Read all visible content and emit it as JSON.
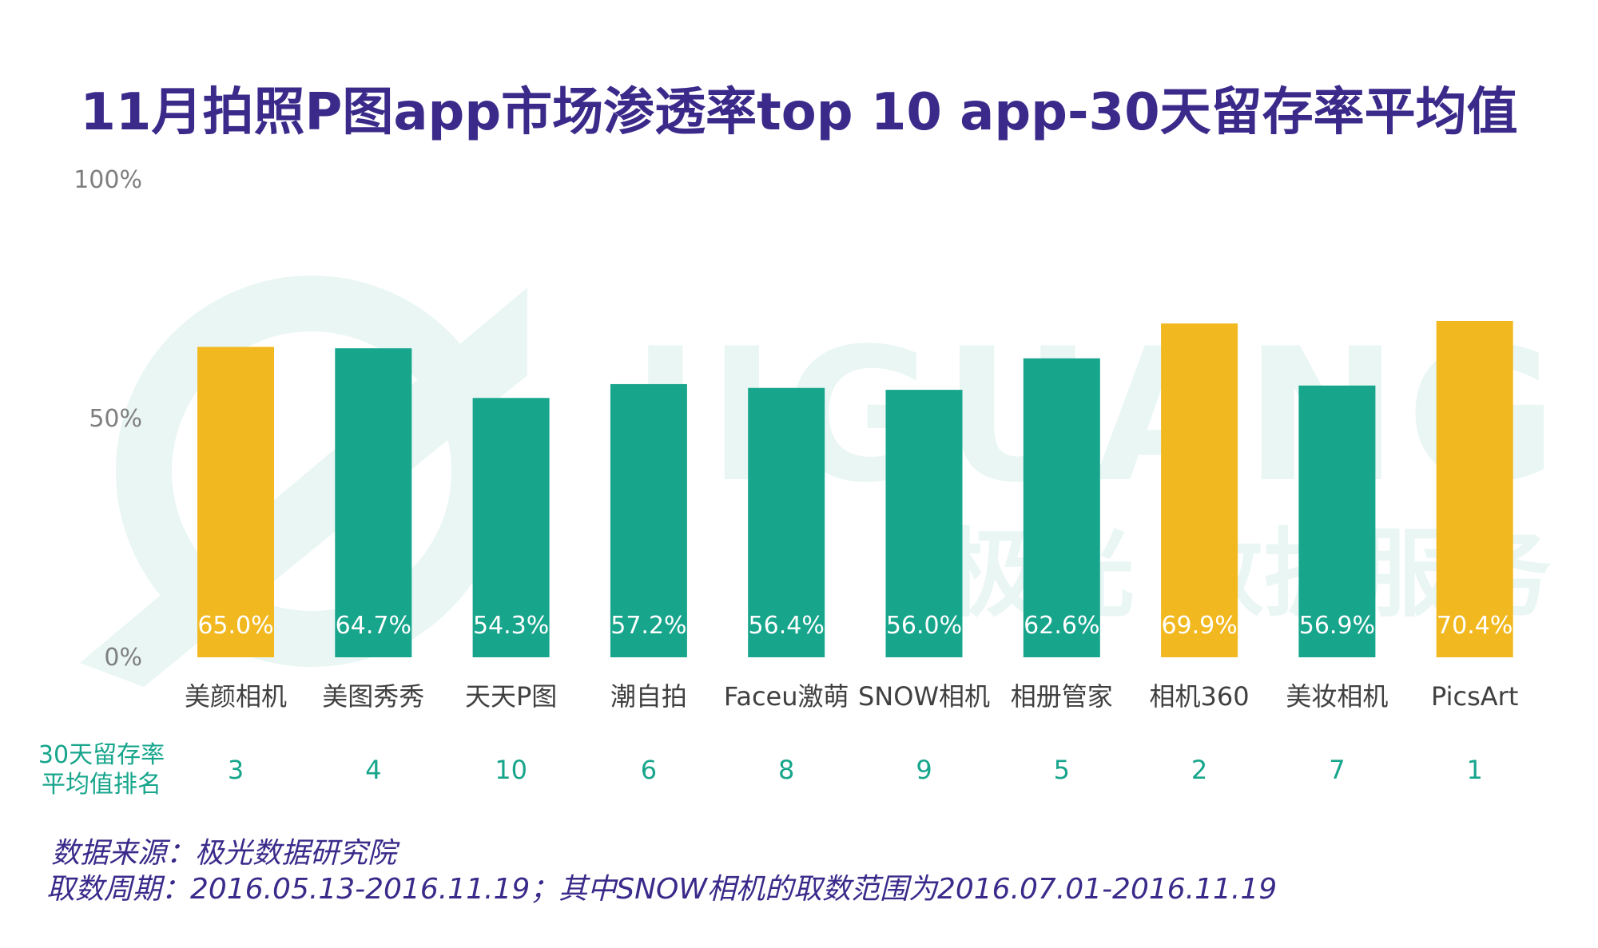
{
  "chart_data": {
    "type": "bar",
    "title": "11月拍照P图app市场渗透率top 10 app-30天留存率平均值",
    "categories": [
      "美颜相机",
      "美图秀秀",
      "天天P图",
      "潮自拍",
      "Faceu激萌",
      "SNOW相机",
      "相册管家",
      "相机360",
      "美妆相机",
      "PicsArt"
    ],
    "values": [
      65.0,
      64.7,
      54.3,
      57.2,
      56.4,
      56.0,
      62.6,
      69.9,
      56.9,
      70.4
    ],
    "value_labels": [
      "65.0%",
      "64.7%",
      "54.3%",
      "57.2%",
      "56.4%",
      "56.0%",
      "62.6%",
      "69.9%",
      "56.9%",
      "70.4%"
    ],
    "highlight": [
      true,
      false,
      false,
      false,
      false,
      false,
      false,
      true,
      false,
      true
    ],
    "ranks": [
      "3",
      "4",
      "10",
      "6",
      "8",
      "9",
      "5",
      "2",
      "7",
      "1"
    ],
    "rank_label": [
      "30天留存率",
      "平均值排名"
    ],
    "ylim": [
      0,
      100
    ],
    "yticks": [
      0,
      50,
      100
    ],
    "ytick_labels": [
      "0%",
      "50%",
      "100%"
    ],
    "xlabel": "",
    "ylabel": "",
    "grid": false,
    "colors": {
      "highlight": "#f2b81f",
      "normal": "#17a58c",
      "title": "#3b2a8a",
      "rank": "#17a58c"
    }
  },
  "watermark": {
    "text_en": "JIGUANG",
    "text_cn": "极光 数据服务"
  },
  "source": {
    "line1": "数据来源：极光数据研究院",
    "line2": "取数周期：2016.05.13-2016.11.19；其中SNOW相机的取数范围为2016.07.01-2016.11.19"
  }
}
